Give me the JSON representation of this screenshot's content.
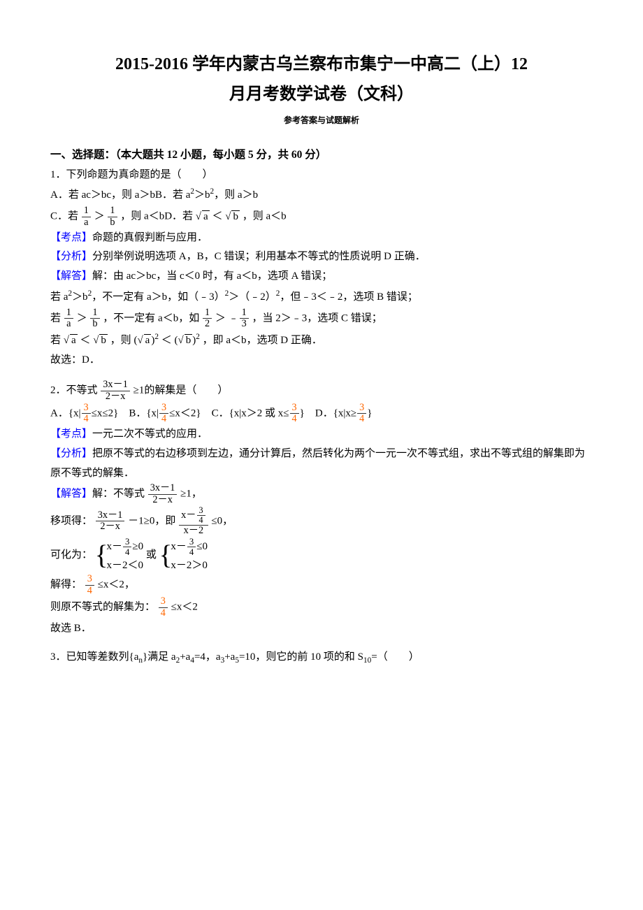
{
  "colors": {
    "blue": "#0000ff",
    "orange": "#ff6600",
    "text": "#000000",
    "bg": "#ffffff"
  },
  "title_line1": "2015-2016 学年内蒙古乌兰察布市集宁一中高二（上）12",
  "title_line2": "月月考数学试卷（文科）",
  "answer_key_label": "参考答案与试题解析",
  "section_heading": "一、选择题：（本大题共 12 小题，每小题 5 分，共 60 分）",
  "q1": {
    "stem": "1．下列命题为真命题的是（　　）",
    "optA_1": "A．若 ac＞bc，则 a＞b",
    "optA_2": "B．若 a",
    "sup2": "2",
    "optA_3": "＞b",
    "optA_4": "，则 a＞b",
    "optC_pre": "C．若",
    "one": "1",
    "a": "a",
    "b": "b",
    "gt": "＞",
    "optC_post": "，则 a＜b",
    "optD_pre": "D．若",
    "sqrt_a": "a",
    "sqrt_b": "b",
    "lt": "＜",
    "optD_post": "，则 a＜b",
    "kaodian_lead": "【考点】",
    "kaodian": "命题的真假判断与应用．",
    "fenxi_lead": "【分析】",
    "fenxi": "分别举例说明选项 A，B，C 错误；利用基本不等式的性质说明 D 正确．",
    "jieda_lead": "【解答】",
    "jieda1": "解：由 ac＞bc，当 c＜0 时，有 a＜b，选项 A 错误；",
    "jieda2_a": "若 a",
    "jieda2_b": "＞b",
    "jieda2_c": "，不一定有 a＞b，如（﹣3）",
    "jieda2_d": "＞（﹣2）",
    "jieda2_e": "，但﹣3＜﹣2，选项 B 错误；",
    "jieda3_a": "若",
    "jieda3_b": "，不一定有 a＜b，如",
    "half_num": "1",
    "half_den": "2",
    "neg_third_pre": "﹣",
    "third_num": "1",
    "third_den": "3",
    "jieda3_c": "，当 2＞﹣3，选项 C 错误；",
    "jieda4_a": "若",
    "jieda4_b": "，则",
    "lparen": "(",
    "rparen": ")",
    "jieda4_c": "，即 a＜b，选项 D 正确．",
    "end": "故选：D．"
  },
  "q2": {
    "stem_a": "2．不等式",
    "f_num": "3x－1",
    "f_den": "2－x",
    "ge1": "≥1",
    "stem_b": "的解集是（　　）",
    "optA_a": "A．{x|",
    "three": "3",
    "four": "4",
    "optA_b": "≤x≤2}　B．{x|",
    "optB_b": "≤x＜2}　C．{x|x＞2 或 x≤",
    "optC_b": "}　D．{x|x≥",
    "optD_b": "}",
    "kaodian_lead": "【考点】",
    "kaodian": "一元二次不等式的应用．",
    "fenxi_lead": "【分析】",
    "fenxi": "把原不等式的右边移项到左边，通分计算后，然后转化为两个一元一次不等式组，求出不等式组的解集即为原不等式的解集．",
    "jieda_lead": "【解答】",
    "jieda1_a": "解：不等式",
    "jieda1_b": "≥1，",
    "jieda2_a": "移项得：",
    "minus1": "－1≥0，即",
    "f2_num": "x－",
    "f2_den": "x－2",
    "le0": "≤0，",
    "jieda3_a": "可化为：",
    "row1a": "x－",
    "row1b": "≥0",
    "row2a": "x－2＜0",
    "or": "或",
    "row1b2": "≤0",
    "row2b": "x－2＞0",
    "jieda4_a": "解得：",
    "jieda4_b": "≤x＜2，",
    "jieda5_a": "则原不等式的解集为：",
    "jieda5_b": "≤x＜2",
    "end": "故选 B．"
  },
  "q3": {
    "stem_a": "3．已知等差数列{a",
    "n": "n",
    "stem_b": "}满足 a",
    "sub2": "2",
    "stem_c": "+a",
    "sub4": "4",
    "stem_d": "=4，a",
    "sub3": "3",
    "stem_e": "+a",
    "sub5": "5",
    "stem_f": "=10，则它的前 10 项的和 S",
    "sub10": "10",
    "stem_g": "=（　　）"
  }
}
